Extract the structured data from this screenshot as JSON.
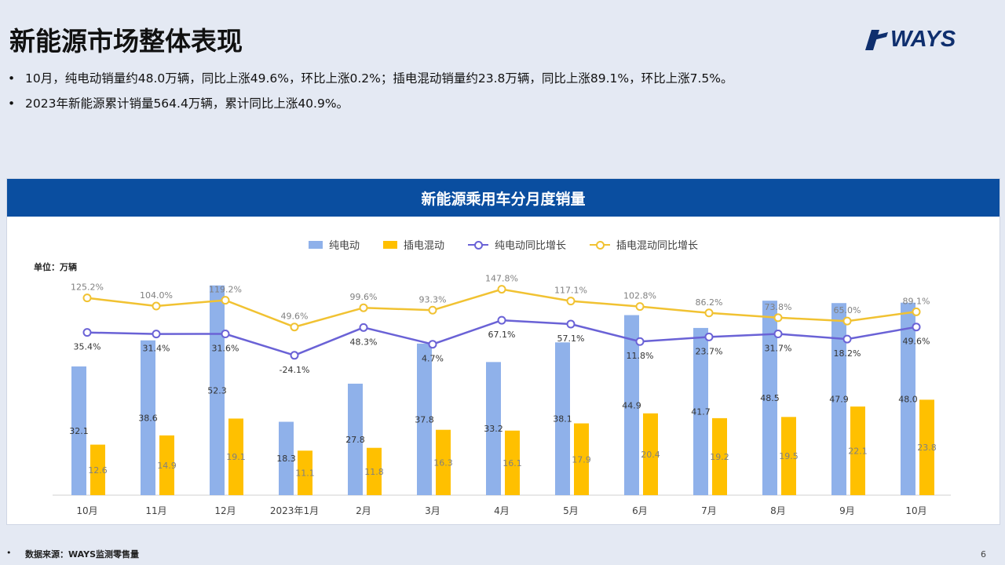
{
  "header": {
    "title": "新能源市场整体表现",
    "logo_text": "WAYS"
  },
  "bullets": [
    "10月，纯电动销量约48.0万辆，同比上涨49.6%，环比上涨0.2%；插电混动销量约23.8万辆，同比上涨89.1%，环比上涨7.5%。",
    "2023年新能源累计销量564.4万辆，累计同比上涨40.9%。"
  ],
  "chart_title": "新能源乘用车分月度销量",
  "unit_label": "单位：万辆",
  "footer": {
    "source": "数据来源：WAYS监测零售量",
    "page": "6"
  },
  "colors": {
    "bev_bar": "#8fb1ea",
    "phev_bar": "#ffc000",
    "bev_line": "#6a62d6",
    "phev_line": "#f1c232",
    "header_bg": "#0a4ea0"
  },
  "chart_data": {
    "type": "bar",
    "categories": [
      "10月",
      "11月",
      "12月",
      "2023年1月",
      "2月",
      "3月",
      "4月",
      "5月",
      "6月",
      "7月",
      "8月",
      "9月",
      "10月"
    ],
    "series": [
      {
        "name": "纯电动",
        "kind": "bar",
        "values": [
          32.1,
          38.6,
          52.3,
          18.3,
          27.8,
          37.8,
          33.2,
          38.1,
          44.9,
          41.7,
          48.5,
          47.9,
          48.0
        ]
      },
      {
        "name": "插电混动",
        "kind": "bar",
        "values": [
          12.6,
          14.9,
          19.1,
          11.1,
          11.8,
          16.3,
          16.1,
          17.9,
          20.4,
          19.2,
          19.5,
          22.1,
          23.8
        ]
      },
      {
        "name": "纯电动同比增长",
        "kind": "line",
        "values": [
          35.4,
          31.4,
          31.6,
          -24.1,
          48.3,
          4.7,
          67.1,
          57.1,
          11.8,
          23.7,
          31.7,
          18.2,
          49.6
        ],
        "labels": [
          "35.4%",
          "31.4%",
          "31.6%",
          "-24.1%",
          "48.3%",
          "4.7%",
          "67.1%",
          "57.1%",
          "11.8%",
          "23.7%",
          "31.7%",
          "18.2%",
          "49.6%"
        ]
      },
      {
        "name": "插电混动同比增长",
        "kind": "line",
        "values": [
          125.2,
          104.0,
          119.2,
          49.6,
          99.6,
          93.3,
          147.8,
          117.1,
          102.8,
          86.2,
          73.8,
          65.0,
          89.1
        ],
        "labels": [
          "125.2%",
          "104.0%",
          "119.2%",
          "49.6%",
          "99.6%",
          "93.3%",
          "147.8%",
          "117.1%",
          "102.8%",
          "86.2%",
          "73.8%",
          "65.0%",
          "89.1%"
        ]
      }
    ],
    "bar_labels_bev": [
      "32.1",
      "38.6",
      "52.3",
      "18.3",
      "27.8",
      "37.8",
      "33.2",
      "38.1",
      "44.9",
      "41.7",
      "48.5",
      "47.9",
      "48.0"
    ],
    "bar_labels_phev": [
      "12.6",
      "14.9",
      "19.1",
      "11.1",
      "11.8",
      "16.3",
      "16.1",
      "17.9",
      "20.4",
      "19.2",
      "19.5",
      "22.1",
      "23.8"
    ],
    "legend_position": "top-center",
    "ylabel": "单位：万辆",
    "grid": false
  }
}
